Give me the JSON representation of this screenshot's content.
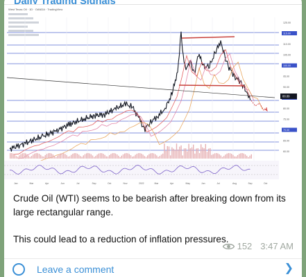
{
  "channel": {
    "title": "Daily Trading Signals"
  },
  "chart": {
    "header_text": "West Texas Oil · 1D · OANDA · TradingView",
    "price_tag": "88.89",
    "time_labels": [
      "Jan",
      "Mar",
      "Apr",
      "Jun",
      "Jul",
      "Sep",
      "Oct",
      "Nov",
      "2022",
      "Mar",
      "Apr",
      "May",
      "Jun",
      "Jul",
      "Aug",
      "Sep",
      "Oct"
    ],
    "price_labels": [
      "125.00",
      "115.00",
      "110.00",
      "105.00",
      "100.00",
      "95.00",
      "90.00",
      "85.00",
      "80.00",
      "75.00",
      "70.00",
      "65.00",
      "60.00"
    ],
    "colors": {
      "price": "#131722",
      "ma_red": "#e05050",
      "ma_pink": "#e07aa0",
      "ma_blue": "#5a6fd6",
      "ma_orange": "#e8a050",
      "resistance": "#c8403a",
      "support_blue": "#3a52c8",
      "volume": "#e6b0b3",
      "rsi": "#7a5fc8"
    }
  },
  "post": {
    "lines": [
      "Crude Oil (WTI) seems to be bearish after breaking down from its large rectangular range.",
      "This could lead to a reduction of inflation pressures."
    ],
    "views": "152",
    "time": "3:47 AM",
    "comment_label": "Leave a comment",
    "eye_icon": "eye-icon",
    "comment_icon": "comment-circle-icon",
    "chevron_icon": "chevron-right-icon"
  }
}
